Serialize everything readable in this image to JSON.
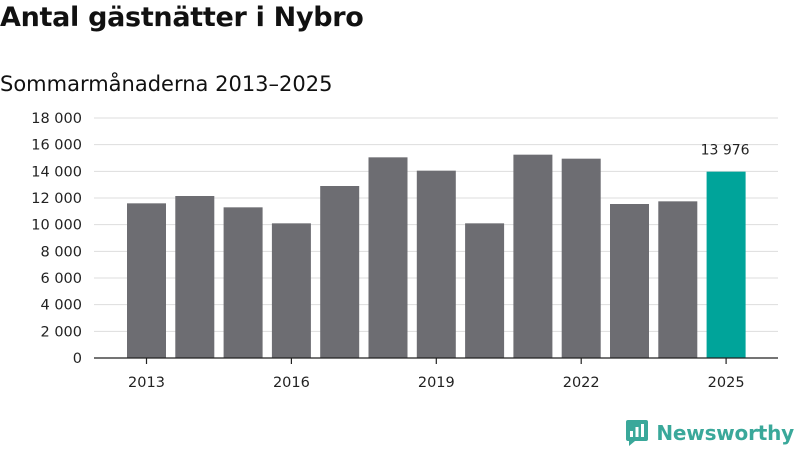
{
  "header": {
    "title": "Antal gästnätter i Nybro",
    "subtitle": "Sommarmånaderna 2013–2025"
  },
  "brand": {
    "name": "Newsworthy",
    "icon": "newsworthy-logo-icon",
    "color": "#3aa89a"
  },
  "colors": {
    "bar": "#6d6d72",
    "highlight": "#00a49a",
    "grid": "#dddddd",
    "axis": "#222222"
  },
  "chart_data": {
    "type": "bar",
    "title": "Antal gästnätter i Nybro",
    "subtitle": "Sommarmånaderna 2013–2025",
    "categories": [
      "2013",
      "2014",
      "2015",
      "2016",
      "2017",
      "2018",
      "2019",
      "2020",
      "2021",
      "2022",
      "2023",
      "2024",
      "2025"
    ],
    "values": [
      11600,
      12150,
      11300,
      10100,
      12900,
      15050,
      14050,
      10100,
      15250,
      14950,
      11550,
      11750,
      13976
    ],
    "highlight_index": 12,
    "highlight_label": "13 976",
    "x_tick_labels": [
      "2013",
      "2016",
      "2019",
      "2022",
      "2025"
    ],
    "y_ticks": [
      0,
      2000,
      4000,
      6000,
      8000,
      10000,
      12000,
      14000,
      16000,
      18000
    ],
    "y_tick_labels": [
      "0",
      "2 000",
      "4 000",
      "6 000",
      "8 000",
      "10 000",
      "12 000",
      "14 000",
      "16 000",
      "18 000"
    ],
    "ylim": [
      0,
      18000
    ],
    "grid": true,
    "legend": "none"
  }
}
